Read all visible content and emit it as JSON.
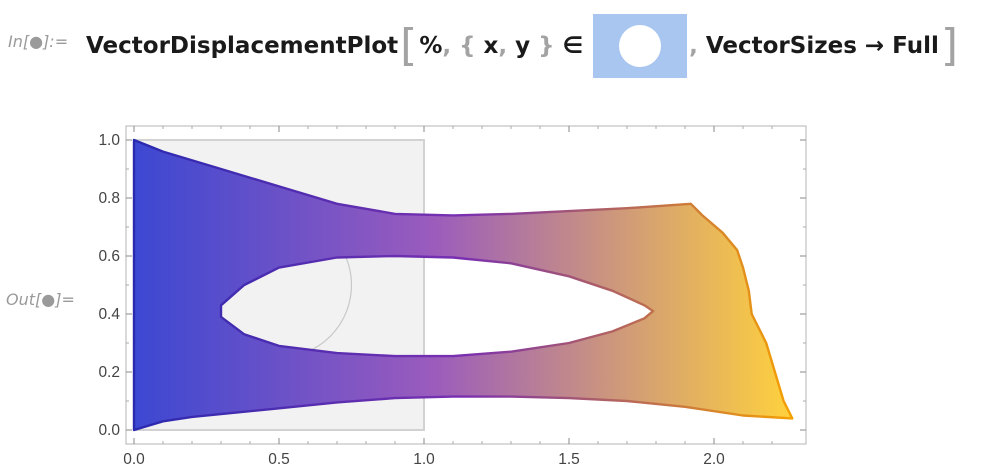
{
  "input_label": "In[●]:=",
  "output_label": "Out[●]=",
  "input": {
    "function_name": "VectorDisplacementPlot",
    "open_bracket": "[",
    "percent": "%",
    "comma": ",",
    "open_brace": "{",
    "var_x": "x",
    "var_y": "y",
    "close_brace": "}",
    "element_symbol": "∈",
    "region_icon": "disk-region-icon",
    "option": "VectorSizes → Full",
    "close_bracket": "]"
  },
  "chart_data": {
    "type": "area",
    "x_ticks": [
      "0.0",
      "0.5",
      "1.0",
      "1.5",
      "2.0"
    ],
    "y_ticks": [
      "0.0",
      "0.2",
      "0.4",
      "0.6",
      "0.8",
      "1.0"
    ],
    "xlim": [
      0,
      2.3
    ],
    "ylim": [
      0,
      1.02
    ],
    "background_square": {
      "x": [
        0,
        1
      ],
      "y": [
        0,
        1
      ]
    },
    "reference_circle": {
      "center": [
        0.5,
        0.5
      ],
      "radius": 0.25
    },
    "outer_boundary": [
      [
        0,
        1.0
      ],
      [
        0.1,
        0.96
      ],
      [
        0.3,
        0.9
      ],
      [
        0.5,
        0.84
      ],
      [
        0.7,
        0.78
      ],
      [
        0.9,
        0.745
      ],
      [
        1.1,
        0.74
      ],
      [
        1.3,
        0.745
      ],
      [
        1.5,
        0.755
      ],
      [
        1.7,
        0.765
      ],
      [
        1.92,
        0.78
      ],
      [
        1.96,
        0.74
      ],
      [
        2.03,
        0.68
      ],
      [
        2.08,
        0.62
      ],
      [
        2.1,
        0.56
      ],
      [
        2.12,
        0.48
      ],
      [
        2.13,
        0.4
      ],
      [
        2.15,
        0.36
      ],
      [
        2.18,
        0.3
      ],
      [
        2.21,
        0.2
      ],
      [
        2.24,
        0.1
      ],
      [
        2.27,
        0.04
      ],
      [
        2.1,
        0.05
      ],
      [
        1.9,
        0.08
      ],
      [
        1.7,
        0.1
      ],
      [
        1.5,
        0.11
      ],
      [
        1.3,
        0.115
      ],
      [
        1.1,
        0.115
      ],
      [
        0.9,
        0.11
      ],
      [
        0.7,
        0.095
      ],
      [
        0.5,
        0.075
      ],
      [
        0.3,
        0.055
      ],
      [
        0.2,
        0.045
      ],
      [
        0.1,
        0.03
      ],
      [
        0,
        0.0
      ]
    ],
    "hole_boundary": [
      [
        0.3,
        0.43
      ],
      [
        0.38,
        0.5
      ],
      [
        0.5,
        0.56
      ],
      [
        0.7,
        0.595
      ],
      [
        0.9,
        0.6
      ],
      [
        1.1,
        0.595
      ],
      [
        1.3,
        0.575
      ],
      [
        1.5,
        0.53
      ],
      [
        1.65,
        0.48
      ],
      [
        1.76,
        0.43
      ],
      [
        1.79,
        0.41
      ],
      [
        1.76,
        0.385
      ],
      [
        1.65,
        0.34
      ],
      [
        1.5,
        0.3
      ],
      [
        1.3,
        0.27
      ],
      [
        1.1,
        0.255
      ],
      [
        0.9,
        0.255
      ],
      [
        0.7,
        0.265
      ],
      [
        0.5,
        0.29
      ],
      [
        0.38,
        0.33
      ],
      [
        0.3,
        0.39
      ]
    ],
    "colors": {
      "gradient_start": "#3c48d2",
      "gradient_mid": "#9a5bbd",
      "gradient_end": "#ffd23c",
      "outline_start": "#2a2ab0",
      "outline_mid": "#7a30b0",
      "outline_end": "#f5a000",
      "square_fill": "#f2f2f2",
      "square_edge": "#d2d2d2"
    }
  }
}
